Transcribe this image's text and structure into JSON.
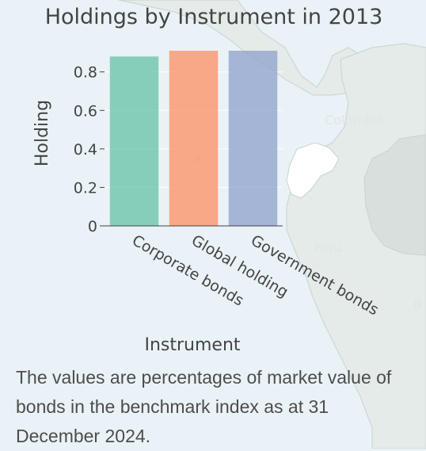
{
  "colors": {
    "background": "#e9f2f6",
    "land": "#e4ebe8",
    "land_shaded": "#d9dfdd",
    "land_white": "#ffffff",
    "bar_1": "#66c2a5",
    "bar_2": "#fc8d62",
    "bar_3": "#8da0cb"
  },
  "map": {
    "labels": [
      "Colombia",
      "Peru",
      "B"
    ]
  },
  "chart_data": {
    "type": "bar",
    "title": "Holdings by Instrument in 2013",
    "xlabel": "Instrument",
    "ylabel": "Holding",
    "categories": [
      "Corporate bonds",
      "Global holding",
      "Government bonds"
    ],
    "values": [
      0.88,
      0.91,
      0.91
    ],
    "ylim": [
      0,
      0.91
    ],
    "yticks": [
      0,
      0.2,
      0.4,
      0.6,
      0.8
    ],
    "ytick_labels": [
      "0",
      "0.2",
      "0.4",
      "0.6",
      "0.8"
    ],
    "grid": true,
    "legend": "none"
  },
  "caption": "The values are percentages of market value of bonds in the benchmark index as at 31 December 2024."
}
